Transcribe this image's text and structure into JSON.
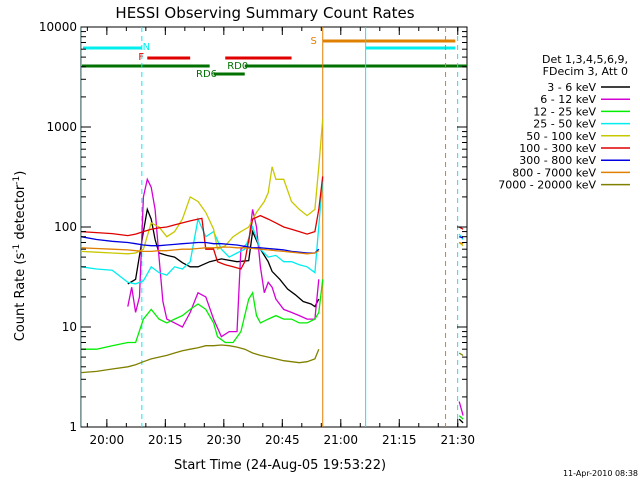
{
  "chart_data": {
    "type": "line",
    "title": "HESSI Observing Summary Count Rates",
    "xlabel": "Start Time (24-Aug-05 19:53:22)",
    "ylabel": "Count Rate (s^-1 detector^-1)",
    "ylabel_main": "Count Rate (s",
    "ylabel_sup1": "-1",
    "ylabel_mid": " detector",
    "ylabel_sup2": "-1",
    "ylabel_end": ")",
    "y_scale": "log",
    "ylim": [
      1,
      10000
    ],
    "xlim_minutes": [
      0,
      99
    ],
    "x_ticks": [
      {
        "label": "20:00",
        "min": 6.63
      },
      {
        "label": "20:15",
        "min": 21.63
      },
      {
        "label": "20:30",
        "min": 36.63
      },
      {
        "label": "20:45",
        "min": 51.63
      },
      {
        "label": "21:00",
        "min": 66.63
      },
      {
        "label": "21:15",
        "min": 81.63
      },
      {
        "label": "21:30",
        "min": 96.63
      }
    ],
    "y_ticks": [
      {
        "label": "1",
        "v": 1
      },
      {
        "label": "10",
        "v": 10
      },
      {
        "label": "100",
        "v": 100
      },
      {
        "label": "1000",
        "v": 1000
      },
      {
        "label": "10000",
        "v": 10000
      }
    ],
    "legend_placement": "right",
    "legend_header": [
      "Det 1,3,4,5,6,9,",
      "FDecim 3, Att 0"
    ],
    "series": [
      {
        "name": "3 - 6 keV",
        "color": "#000000",
        "points": [
          [
            12,
            27
          ],
          [
            14,
            30
          ],
          [
            16,
            90
          ],
          [
            17,
            150
          ],
          [
            18,
            120
          ],
          [
            19,
            75
          ],
          [
            20,
            55
          ],
          [
            22,
            52
          ],
          [
            24,
            50
          ],
          [
            26,
            44
          ],
          [
            28,
            40
          ],
          [
            30,
            40
          ],
          [
            33,
            45
          ],
          [
            36,
            48
          ],
          [
            40,
            45
          ],
          [
            43,
            46
          ],
          [
            44,
            90
          ],
          [
            46,
            60
          ],
          [
            48,
            45
          ],
          [
            49,
            36
          ],
          [
            51,
            30
          ],
          [
            53,
            24
          ],
          [
            55,
            21
          ],
          [
            57,
            18
          ],
          [
            59,
            17
          ],
          [
            60,
            16
          ],
          [
            61,
            19
          ]
        ],
        "gap_points": [
          [
            97,
            1.2
          ],
          [
            98,
            1.1
          ]
        ]
      },
      {
        "name": "6 - 12 keV",
        "color": "#d400d4",
        "points": [
          [
            12,
            16
          ],
          [
            13,
            25
          ],
          [
            14,
            14
          ],
          [
            15,
            20
          ],
          [
            16,
            200
          ],
          [
            17,
            300
          ],
          [
            18,
            250
          ],
          [
            19,
            150
          ],
          [
            20,
            50
          ],
          [
            21,
            18
          ],
          [
            22,
            12
          ],
          [
            24,
            11
          ],
          [
            26,
            10
          ],
          [
            28,
            14
          ],
          [
            30,
            22
          ],
          [
            32,
            20
          ],
          [
            34,
            12
          ],
          [
            36,
            8
          ],
          [
            38,
            9
          ],
          [
            40,
            9
          ],
          [
            41,
            60
          ],
          [
            43,
            70
          ],
          [
            44,
            150
          ],
          [
            45,
            100
          ],
          [
            46,
            40
          ],
          [
            47,
            22
          ],
          [
            48,
            28
          ],
          [
            49,
            25
          ],
          [
            50,
            19
          ],
          [
            52,
            15
          ],
          [
            54,
            14
          ],
          [
            56,
            13
          ],
          [
            58,
            12
          ],
          [
            60,
            12
          ],
          [
            61,
            30
          ]
        ],
        "gap_points": [
          [
            97,
            1.8
          ],
          [
            98,
            1.3
          ]
        ]
      },
      {
        "name": "12 - 25 keV",
        "color": "#00ee00",
        "points": [
          [
            0,
            6
          ],
          [
            4,
            6
          ],
          [
            8,
            6.5
          ],
          [
            12,
            7
          ],
          [
            14,
            7
          ],
          [
            16,
            12
          ],
          [
            18,
            15
          ],
          [
            20,
            12
          ],
          [
            22,
            11
          ],
          [
            24,
            12
          ],
          [
            26,
            13
          ],
          [
            28,
            15
          ],
          [
            30,
            17
          ],
          [
            32,
            15
          ],
          [
            34,
            11
          ],
          [
            35,
            8
          ],
          [
            37,
            7
          ],
          [
            39,
            7
          ],
          [
            41,
            9
          ],
          [
            43,
            19
          ],
          [
            44,
            22
          ],
          [
            45,
            13
          ],
          [
            46,
            11
          ],
          [
            48,
            12
          ],
          [
            50,
            13
          ],
          [
            52,
            12
          ],
          [
            54,
            12
          ],
          [
            56,
            11
          ],
          [
            58,
            11
          ],
          [
            60,
            12
          ],
          [
            61,
            14
          ],
          [
            62,
            30
          ]
        ],
        "gap_points": [
          [
            97,
            1.3
          ],
          [
            98,
            1.2
          ]
        ]
      },
      {
        "name": "25 - 50 keV",
        "color": "#00eeee",
        "points": [
          [
            0,
            40
          ],
          [
            4,
            38
          ],
          [
            8,
            37
          ],
          [
            12,
            28
          ],
          [
            14,
            27
          ],
          [
            16,
            29
          ],
          [
            18,
            40
          ],
          [
            20,
            35
          ],
          [
            22,
            33
          ],
          [
            24,
            40
          ],
          [
            26,
            38
          ],
          [
            28,
            45
          ],
          [
            30,
            120
          ],
          [
            32,
            80
          ],
          [
            34,
            90
          ],
          [
            36,
            60
          ],
          [
            38,
            50
          ],
          [
            40,
            55
          ],
          [
            42,
            60
          ],
          [
            44,
            100
          ],
          [
            46,
            60
          ],
          [
            48,
            50
          ],
          [
            50,
            52
          ],
          [
            52,
            45
          ],
          [
            54,
            45
          ],
          [
            56,
            42
          ],
          [
            58,
            40
          ],
          [
            60,
            35
          ],
          [
            62,
            300
          ]
        ],
        "gap_points": [
          [
            97,
            85
          ],
          [
            98,
            75
          ]
        ]
      },
      {
        "name": "50 - 100 keV",
        "color": "#c8c800",
        "points": [
          [
            0,
            57
          ],
          [
            4,
            56
          ],
          [
            8,
            55
          ],
          [
            12,
            54
          ],
          [
            14,
            55
          ],
          [
            16,
            60
          ],
          [
            18,
            110
          ],
          [
            20,
            100
          ],
          [
            22,
            80
          ],
          [
            24,
            90
          ],
          [
            26,
            120
          ],
          [
            28,
            200
          ],
          [
            30,
            180
          ],
          [
            32,
            140
          ],
          [
            34,
            95
          ],
          [
            35,
            60
          ],
          [
            37,
            65
          ],
          [
            39,
            80
          ],
          [
            41,
            90
          ],
          [
            43,
            100
          ],
          [
            45,
            140
          ],
          [
            47,
            180
          ],
          [
            48,
            220
          ],
          [
            49,
            400
          ],
          [
            50,
            300
          ],
          [
            52,
            300
          ],
          [
            54,
            180
          ],
          [
            56,
            150
          ],
          [
            58,
            130
          ],
          [
            60,
            150
          ],
          [
            61,
            400
          ],
          [
            62,
            1200
          ]
        ],
        "gap_points": [
          [
            97,
            70
          ],
          [
            98,
            65
          ]
        ]
      },
      {
        "name": "100 - 300 keV",
        "color": "#e00000",
        "points": [
          [
            0,
            90
          ],
          [
            4,
            88
          ],
          [
            8,
            86
          ],
          [
            12,
            82
          ],
          [
            14,
            85
          ],
          [
            16,
            90
          ],
          [
            18,
            95
          ],
          [
            20,
            98
          ],
          [
            22,
            100
          ],
          [
            24,
            105
          ],
          [
            26,
            110
          ],
          [
            28,
            115
          ],
          [
            30,
            120
          ],
          [
            31,
            122
          ],
          [
            32,
            60
          ],
          [
            34,
            60
          ],
          [
            35,
            45
          ],
          [
            37,
            42
          ],
          [
            39,
            40
          ],
          [
            41,
            38
          ],
          [
            42,
            45
          ],
          [
            44,
            120
          ],
          [
            46,
            130
          ],
          [
            48,
            120
          ],
          [
            50,
            110
          ],
          [
            52,
            100
          ],
          [
            54,
            95
          ],
          [
            56,
            90
          ],
          [
            58,
            85
          ],
          [
            60,
            90
          ],
          [
            61,
            150
          ],
          [
            62,
            320
          ]
        ],
        "gap_points": [
          [
            97,
            100
          ],
          [
            98,
            95
          ]
        ]
      },
      {
        "name": "300 - 800 keV",
        "color": "#0000e0",
        "points": [
          [
            0,
            80
          ],
          [
            4,
            75
          ],
          [
            8,
            72
          ],
          [
            12,
            70
          ],
          [
            14,
            68
          ],
          [
            16,
            66
          ],
          [
            18,
            65
          ],
          [
            20,
            65
          ],
          [
            22,
            66
          ],
          [
            24,
            67
          ],
          [
            26,
            68
          ],
          [
            28,
            69
          ],
          [
            30,
            70
          ],
          [
            32,
            70
          ],
          [
            34,
            68
          ],
          [
            36,
            68
          ],
          [
            38,
            67
          ],
          [
            40,
            66
          ],
          [
            42,
            64
          ],
          [
            44,
            62
          ],
          [
            46,
            62
          ],
          [
            48,
            61
          ],
          [
            50,
            60
          ],
          [
            52,
            59
          ],
          [
            54,
            57
          ],
          [
            56,
            56
          ],
          [
            58,
            55
          ],
          [
            60,
            55
          ],
          [
            61,
            60
          ]
        ],
        "gap_points": [
          [
            97,
            80
          ],
          [
            98,
            78
          ]
        ]
      },
      {
        "name": "800 - 7000 keV",
        "color": "#e08000",
        "points": [
          [
            0,
            62
          ],
          [
            4,
            61
          ],
          [
            8,
            60
          ],
          [
            12,
            59
          ],
          [
            14,
            58
          ],
          [
            16,
            57
          ],
          [
            18,
            57
          ],
          [
            20,
            58
          ],
          [
            22,
            58
          ],
          [
            24,
            59
          ],
          [
            26,
            60
          ],
          [
            28,
            60
          ],
          [
            30,
            61
          ],
          [
            32,
            62
          ],
          [
            34,
            62
          ],
          [
            36,
            63
          ],
          [
            38,
            63
          ],
          [
            40,
            62
          ],
          [
            42,
            62
          ],
          [
            44,
            61
          ],
          [
            46,
            60
          ],
          [
            48,
            59
          ],
          [
            50,
            58
          ],
          [
            52,
            57
          ],
          [
            54,
            56
          ],
          [
            56,
            55
          ],
          [
            58,
            54
          ],
          [
            60,
            55
          ],
          [
            61,
            58
          ]
        ],
        "gap_points": [
          [
            97,
            70
          ],
          [
            98,
            68
          ]
        ]
      },
      {
        "name": "7000 - 20000 keV",
        "color": "#808000",
        "points": [
          [
            0,
            3.5
          ],
          [
            4,
            3.6
          ],
          [
            8,
            3.8
          ],
          [
            12,
            4.0
          ],
          [
            14,
            4.2
          ],
          [
            16,
            4.5
          ],
          [
            18,
            4.8
          ],
          [
            20,
            5.0
          ],
          [
            22,
            5.2
          ],
          [
            24,
            5.5
          ],
          [
            26,
            5.8
          ],
          [
            28,
            6.0
          ],
          [
            30,
            6.2
          ],
          [
            32,
            6.5
          ],
          [
            34,
            6.5
          ],
          [
            36,
            6.6
          ],
          [
            38,
            6.5
          ],
          [
            40,
            6.3
          ],
          [
            42,
            6.0
          ],
          [
            44,
            5.5
          ],
          [
            46,
            5.2
          ],
          [
            48,
            5.0
          ],
          [
            50,
            4.8
          ],
          [
            52,
            4.6
          ],
          [
            54,
            4.5
          ],
          [
            56,
            4.4
          ],
          [
            58,
            4.5
          ],
          [
            60,
            4.8
          ],
          [
            61,
            6
          ]
        ],
        "gap_points": [
          [
            97,
            5.5
          ],
          [
            98,
            5.2
          ]
        ]
      }
    ],
    "annotations": [
      {
        "label": "N",
        "color": "#00eeee"
      },
      {
        "label": "F",
        "color": "#e00000"
      },
      {
        "label": "RD0",
        "color": "#007000"
      },
      {
        "label": "RD6",
        "color": "#007000"
      },
      {
        "label": "S",
        "color": "#e08000"
      }
    ],
    "timestamp": "11-Apr-2010 08:38"
  }
}
